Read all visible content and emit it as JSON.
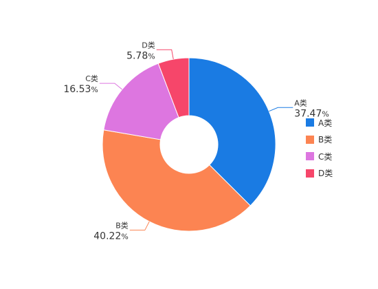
{
  "chart_data": {
    "type": "pie",
    "donut": true,
    "series": [
      {
        "name": "A类",
        "value": 37.47,
        "label": "37.47",
        "color": "#1a7be3"
      },
      {
        "name": "B类",
        "value": 40.22,
        "label": "40.22",
        "color": "#fc8452"
      },
      {
        "name": "C类",
        "value": 16.53,
        "label": "16.53",
        "color": "#dd76e0"
      },
      {
        "name": "D类",
        "value": 5.78,
        "label": "5.78",
        "color": "#f6466a"
      }
    ],
    "percent_suffix": "%",
    "legend_position": "right"
  }
}
